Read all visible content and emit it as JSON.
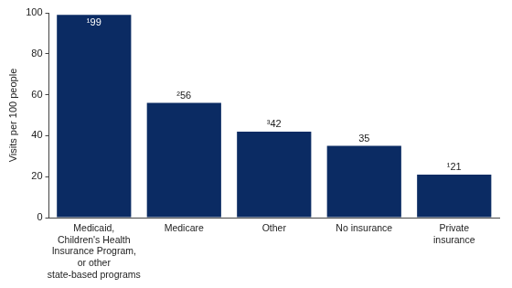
{
  "chart_data": {
    "type": "bar",
    "y_label": "Visits per 100 people",
    "categories": [
      [
        "Medicaid,",
        "Children's Health",
        "Insurance Program,",
        "or other",
        "state-based programs"
      ],
      "Medicare",
      "Other",
      "No insurance",
      [
        "Private",
        "insurance"
      ]
    ],
    "values": [
      99,
      56,
      42,
      35,
      21
    ],
    "value_labels": [
      "¹99",
      "²56",
      "³42",
      "35",
      "¹21"
    ],
    "data_labels": true,
    "color": "#0b2b63",
    "ylim": [
      0,
      100
    ],
    "yticks": [
      0,
      20,
      40,
      60,
      80,
      100
    ],
    "grid": false
  }
}
